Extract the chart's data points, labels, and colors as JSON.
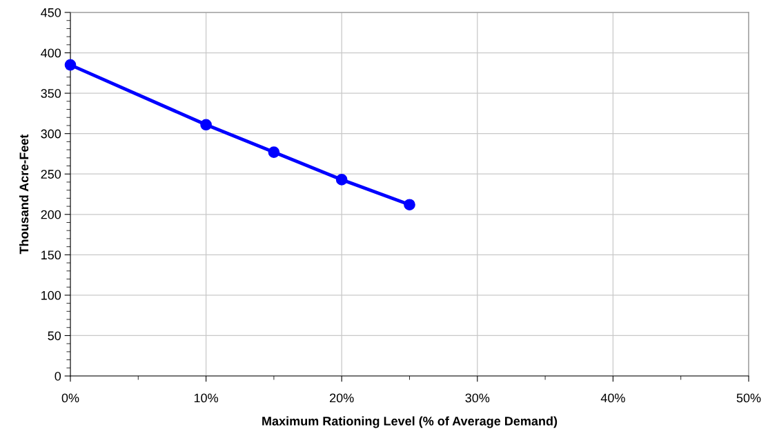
{
  "chart_data": {
    "type": "line",
    "xlabel": "Maximum Rationing Level (% of Average Demand)",
    "ylabel": "Thousand Acre-Feet",
    "x": [
      0,
      10,
      15,
      20,
      25
    ],
    "series": [
      {
        "color": "#0000ff",
        "values": [
          385,
          311,
          277,
          243,
          212
        ]
      }
    ],
    "xlim": [
      0,
      50
    ],
    "xticks": [
      {
        "value": 0,
        "label": "0%"
      },
      {
        "value": 10,
        "label": "10%"
      },
      {
        "value": 20,
        "label": "20%"
      },
      {
        "value": 30,
        "label": "30%"
      },
      {
        "value": 40,
        "label": "40%"
      },
      {
        "value": 50,
        "label": "50%"
      }
    ],
    "ylim": [
      0,
      450
    ],
    "yticks": [
      0,
      50,
      100,
      150,
      200,
      250,
      300,
      350,
      400,
      450
    ],
    "grid": true,
    "marker": "circle",
    "line_style": "solid",
    "legend": false
  }
}
